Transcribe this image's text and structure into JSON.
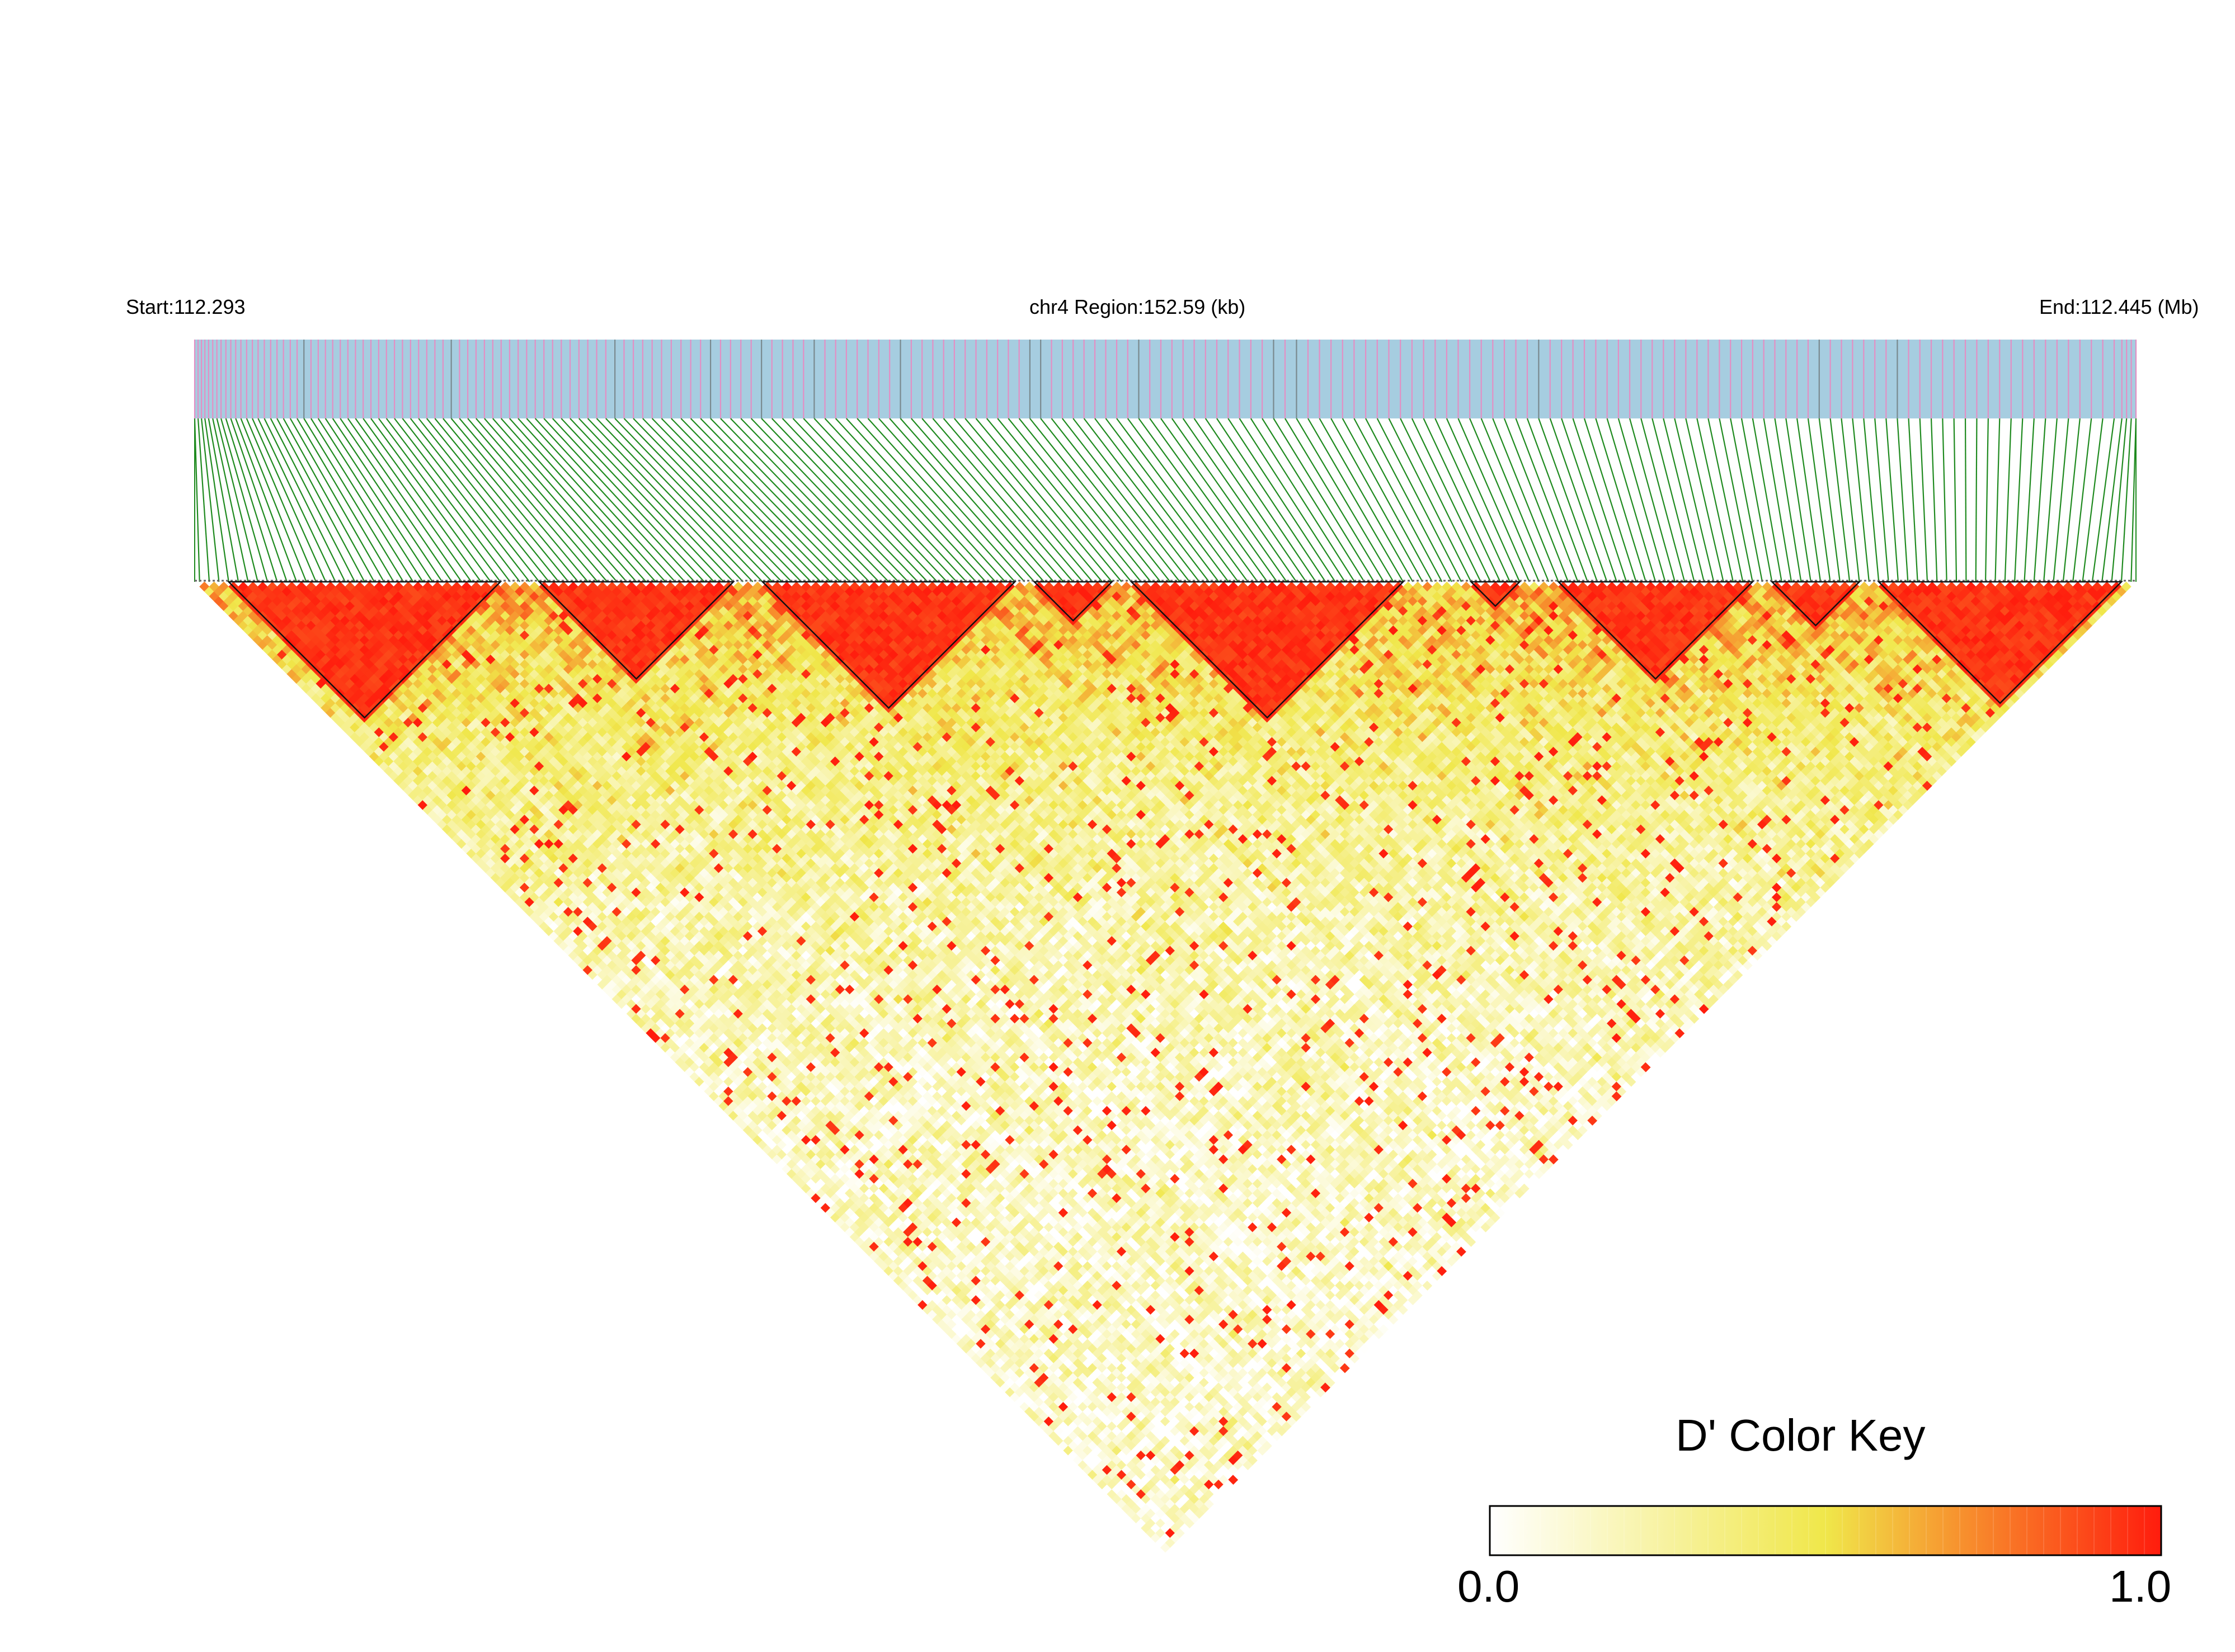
{
  "header": {
    "start_label": "Start:112.293",
    "region_label": "chr4 Region:152.59 (kb)",
    "end_label": "End:112.445 (Mb)"
  },
  "colors": {
    "track_background": "#a6cde0",
    "snp_mark": "#e38fc4",
    "snp_mark_dense": "#7a8a8f",
    "connector": "#1f8a1f",
    "ld_low": "#ffffff",
    "ld_mid": "#f0e74a",
    "ld_high": "#ff1c0d"
  },
  "chart_data": {
    "type": "heatmap",
    "title": "",
    "description_kind": "pairwise linkage disequilibrium (D') triangle",
    "chromosome": "chr4",
    "region_start_mb": 112.293,
    "region_end_mb": 112.445,
    "region_length_kb": 152.59,
    "n_snps": 200,
    "snp_position_profile": [
      0,
      0.0062,
      0.0138,
      0.0228,
      0.0333,
      0.0449,
      0.0574,
      0.0706,
      0.0845,
      0.0987,
      0.1134,
      0.1283,
      0.1434,
      0.1587,
      0.1743,
      0.1902,
      0.2064,
      0.2231,
      0.2403,
      0.2581,
      0.2764,
      0.2953,
      0.3146,
      0.3342,
      0.354,
      0.3738,
      0.3935,
      0.4133,
      0.433,
      0.4528,
      0.4727,
      0.4929,
      0.5132,
      0.5339,
      0.5547,
      0.5757,
      0.5968,
      0.618,
      0.6392,
      0.6603,
      0.6814,
      0.7023,
      0.7232,
      0.7439,
      0.7644,
      0.7849,
      0.8052,
      0.8255,
      0.8458,
      0.8662,
      0.8868,
      0.9076,
      0.9285,
      0.9495,
      0.9705,
      0.9914,
      1.0
    ],
    "ld_blocks": [
      {
        "first_snp": 3,
        "last_snp": 31,
        "dprime": 1.0
      },
      {
        "first_snp": 35,
        "last_snp": 55,
        "dprime": 1.0
      },
      {
        "first_snp": 58,
        "last_snp": 84,
        "dprime": 1.0
      },
      {
        "first_snp": 86,
        "last_snp": 94,
        "dprime": 1.0
      },
      {
        "first_snp": 96,
        "last_snp": 124,
        "dprime": 1.0
      },
      {
        "first_snp": 131,
        "last_snp": 136,
        "dprime": 1.0
      },
      {
        "first_snp": 140,
        "last_snp": 160,
        "dprime": 1.0
      },
      {
        "first_snp": 162,
        "last_snp": 171,
        "dprime": 1.0
      },
      {
        "first_snp": 173,
        "last_snp": 198,
        "dprime": 1.0
      }
    ],
    "background_dprime_range": [
      0.0,
      1.0
    ],
    "legend": {
      "title": "D' Color Key",
      "min_label": "0.0",
      "max_label": "1.0",
      "placement": "bottom-right",
      "stops": [
        {
          "value": 0.0,
          "color": "#ffffff"
        },
        {
          "value": 0.5,
          "color": "#f0e74a"
        },
        {
          "value": 0.7,
          "color": "#f7922e"
        },
        {
          "value": 1.0,
          "color": "#ff1c0d"
        }
      ]
    }
  }
}
